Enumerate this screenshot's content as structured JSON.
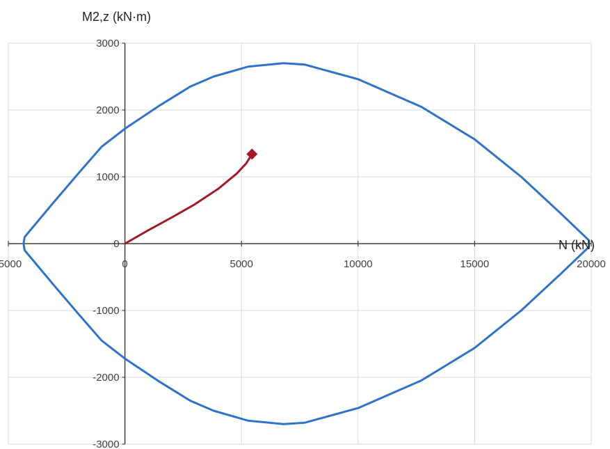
{
  "chart_data": {
    "type": "scatter",
    "xlabel": "N (kN)",
    "ylabel": "M2,z (kN·m)",
    "xlim": [
      -5000,
      20000
    ],
    "ylim": [
      -3000,
      3000
    ],
    "x_ticks": [
      -5000,
      0,
      5000,
      10000,
      15000,
      20000
    ],
    "y_ticks": [
      -3000,
      -2000,
      -1000,
      0,
      1000,
      2000,
      3000
    ],
    "grid": true,
    "legend": "none",
    "series": [
      {
        "role": "interaction-envelope",
        "style": "line",
        "color": "#2F73C9",
        "points": [
          [
            -4350,
            0
          ],
          [
            -4300,
            100
          ],
          [
            -3100,
            600
          ],
          [
            -2000,
            1050
          ],
          [
            -1000,
            1450
          ],
          [
            0,
            1720
          ],
          [
            1500,
            2070
          ],
          [
            2800,
            2350
          ],
          [
            3800,
            2500
          ],
          [
            5300,
            2650
          ],
          [
            6800,
            2700
          ],
          [
            7700,
            2680
          ],
          [
            10000,
            2460
          ],
          [
            12700,
            2050
          ],
          [
            15000,
            1560
          ],
          [
            17000,
            1000
          ],
          [
            18700,
            450
          ],
          [
            19900,
            50
          ],
          [
            19900,
            -50
          ],
          [
            18700,
            -450
          ],
          [
            17000,
            -1000
          ],
          [
            15000,
            -1560
          ],
          [
            12700,
            -2050
          ],
          [
            10000,
            -2460
          ],
          [
            7700,
            -2680
          ],
          [
            6800,
            -2700
          ],
          [
            5300,
            -2650
          ],
          [
            3800,
            -2500
          ],
          [
            2800,
            -2350
          ],
          [
            1500,
            -2070
          ],
          [
            0,
            -1720
          ],
          [
            -1000,
            -1450
          ],
          [
            -2000,
            -1050
          ],
          [
            -3100,
            -600
          ],
          [
            -4300,
            -100
          ],
          [
            -4350,
            0
          ]
        ]
      },
      {
        "role": "load-path",
        "style": "line",
        "color": "#A3192A",
        "points": [
          [
            0,
            0
          ],
          [
            1000,
            200
          ],
          [
            2000,
            390
          ],
          [
            3000,
            590
          ],
          [
            4000,
            820
          ],
          [
            4800,
            1050
          ],
          [
            5200,
            1200
          ],
          [
            5450,
            1340
          ]
        ]
      },
      {
        "role": "design-point",
        "style": "marker",
        "marker": "diamond",
        "color": "#A3192A",
        "points": [
          [
            5450,
            1340
          ]
        ]
      }
    ]
  }
}
